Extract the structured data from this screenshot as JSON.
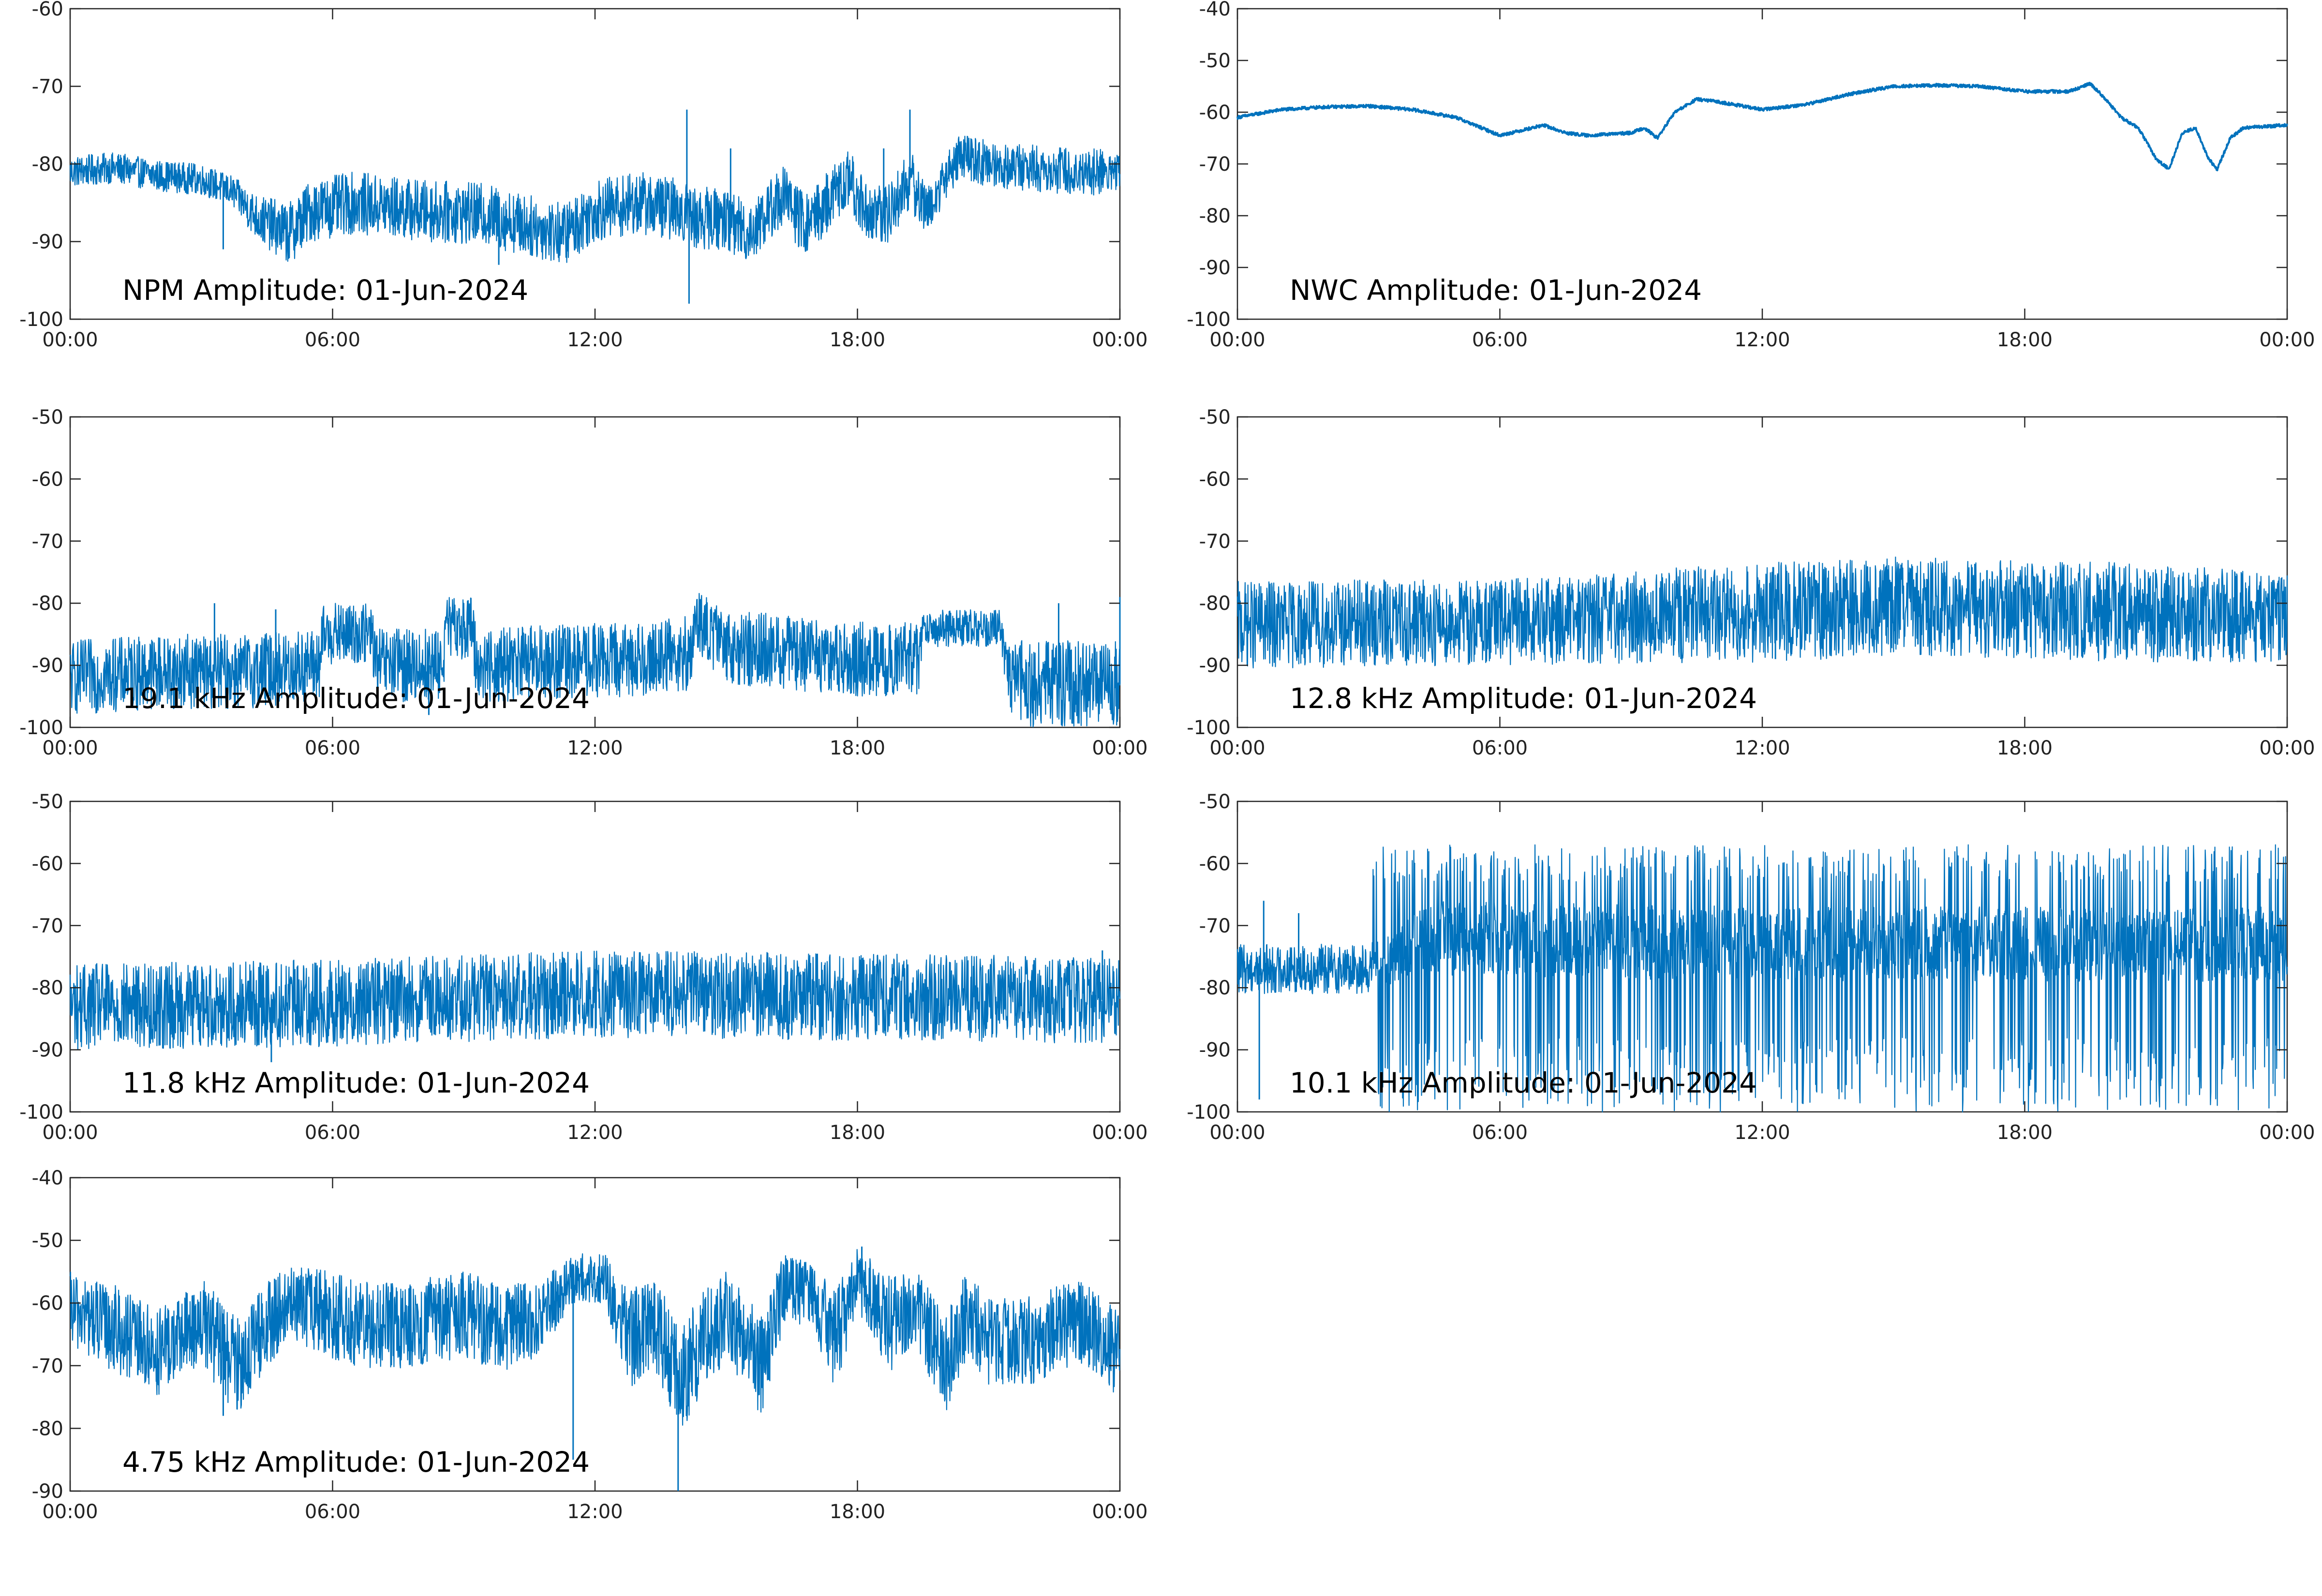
{
  "figure": {
    "line_color": "#0072BD",
    "axes_color": "#262626"
  },
  "chart_data": [
    {
      "type": "line",
      "label": "NPM Amplitude: 01-Jun-2024",
      "xlabel": "",
      "ylabel": "",
      "x_ticks": [
        "00:00",
        "06:00",
        "12:00",
        "18:00",
        "00:00"
      ],
      "xlim_hours": [
        0,
        24
      ],
      "ylim": [
        -100,
        -60
      ],
      "y_ticks": [
        -60,
        -70,
        -80,
        -90,
        -100
      ],
      "grid": false,
      "style": "noisy",
      "series": [
        {
          "x_hours": [
            0,
            1,
            2,
            3,
            3.7,
            4.3,
            5,
            5.5,
            6.5,
            8,
            9.5,
            10.5,
            11.3,
            12,
            13,
            14,
            14.3,
            15,
            15.5,
            16.3,
            16.8,
            17.3,
            17.8,
            18.2,
            18.6,
            19.2,
            19.6,
            20.3,
            21,
            22,
            23,
            24
          ],
          "center": [
            -81,
            -80.5,
            -81.5,
            -82,
            -83.5,
            -87,
            -89,
            -86,
            -85,
            -86,
            -86.5,
            -88,
            -89,
            -86,
            -85,
            -86,
            -87,
            -87,
            -89,
            -84,
            -88,
            -85,
            -82,
            -86,
            -87,
            -82,
            -86,
            -79,
            -80,
            -80.5,
            -81,
            -81
          ],
          "spread": [
            2,
            2,
            2,
            2,
            2,
            3,
            4,
            4,
            4,
            4,
            4,
            4,
            4,
            4,
            4,
            4,
            4,
            4,
            4,
            4,
            4,
            4,
            4,
            4,
            4,
            4,
            3,
            3,
            3,
            3,
            3,
            3
          ],
          "spikes": [
            [
              3.5,
              -91
            ],
            [
              9.8,
              -93
            ],
            [
              14.1,
              -73
            ],
            [
              14.15,
              -98
            ],
            [
              15.1,
              -78
            ],
            [
              19.2,
              -73
            ],
            [
              18.6,
              -78
            ]
          ]
        }
      ]
    },
    {
      "type": "line",
      "label": "NWC Amplitude: 01-Jun-2024",
      "xlabel": "",
      "ylabel": "",
      "x_ticks": [
        "00:00",
        "06:00",
        "12:00",
        "18:00",
        "00:00"
      ],
      "xlim_hours": [
        0,
        24
      ],
      "ylim": [
        -100,
        -40
      ],
      "y_ticks": [
        -40,
        -50,
        -60,
        -70,
        -80,
        -90,
        -100
      ],
      "grid": false,
      "style": "smooth",
      "series": [
        {
          "x_hours": [
            0,
            1,
            2,
            3,
            4,
            5,
            6,
            6.5,
            7,
            7.5,
            8,
            9,
            9.3,
            9.6,
            10,
            10.5,
            11,
            12,
            13,
            14,
            15,
            16,
            17,
            18,
            19,
            19.5,
            19.8,
            20.2,
            20.6,
            21,
            21.3,
            21.6,
            21.9,
            22.2,
            22.4,
            22.7,
            23,
            24
          ],
          "center": [
            -61,
            -59.5,
            -59,
            -58.8,
            -59.5,
            -61,
            -64.5,
            -63.5,
            -62.5,
            -64,
            -64.5,
            -64,
            -63,
            -65,
            -60,
            -57.5,
            -58,
            -59.5,
            -58.5,
            -56.5,
            -55,
            -54.8,
            -55,
            -56,
            -56,
            -54.5,
            -57,
            -61,
            -63,
            -69,
            -71,
            -64,
            -63,
            -69,
            -71,
            -65,
            -63,
            -62.5
          ],
          "spread": [
            0.6
          ],
          "spikes": []
        }
      ]
    },
    {
      "type": "line",
      "label": "19.1 kHz Amplitude: 01-Jun-2024",
      "xlabel": "",
      "ylabel": "",
      "x_ticks": [
        "00:00",
        "06:00",
        "12:00",
        "18:00",
        "00:00"
      ],
      "xlim_hours": [
        0,
        24
      ],
      "ylim": [
        -100,
        -50
      ],
      "y_ticks": [
        -50,
        -60,
        -70,
        -80,
        -90,
        -100
      ],
      "grid": false,
      "style": "noisy",
      "series": [
        {
          "x_hours": [
            0,
            2,
            4,
            5.7,
            5.8,
            6.9,
            7,
            8.5,
            8.6,
            9.2,
            9.3,
            11,
            13,
            14.2,
            14.3,
            15,
            18,
            19.4,
            19.5,
            21.3,
            21.4,
            24
          ],
          "center": [
            -92,
            -91,
            -91,
            -90,
            -85,
            -85,
            -90,
            -90,
            -84,
            -84,
            -90,
            -89.5,
            -89,
            -88,
            -83,
            -87,
            -89,
            -89,
            -84,
            -84,
            -93,
            -93
          ],
          "spread": [
            6,
            6,
            6,
            6,
            5,
            5,
            6,
            6,
            5,
            5,
            6,
            6,
            6,
            6,
            5,
            6,
            6,
            6,
            3,
            3,
            7,
            7
          ],
          "spikes": [
            [
              3.3,
              -80
            ],
            [
              4.7,
              -81
            ],
            [
              8.2,
              -98
            ],
            [
              22.6,
              -80
            ],
            [
              24,
              -79
            ],
            [
              3.6,
              -97
            ]
          ]
        }
      ]
    },
    {
      "type": "line",
      "label": "12.8 kHz Amplitude: 01-Jun-2024",
      "xlabel": "",
      "ylabel": "",
      "x_ticks": [
        "00:00",
        "06:00",
        "12:00",
        "18:00",
        "00:00"
      ],
      "xlim_hours": [
        0,
        24
      ],
      "ylim": [
        -100,
        -50
      ],
      "y_ticks": [
        -50,
        -60,
        -70,
        -80,
        -90,
        -100
      ],
      "grid": false,
      "style": "noisy",
      "series": [
        {
          "x_hours": [
            0,
            6,
            12,
            15,
            18,
            21,
            24
          ],
          "center": [
            -83.5,
            -83,
            -81.5,
            -80.5,
            -81,
            -81.5,
            -82.5
          ],
          "spread": [
            7,
            7,
            8,
            8,
            8,
            8,
            7
          ],
          "spikes": [
            [
              12.3,
              -89
            ],
            [
              9.5,
              -78
            ]
          ]
        }
      ]
    },
    {
      "type": "line",
      "label": "11.8 kHz Amplitude: 01-Jun-2024",
      "xlabel": "",
      "ylabel": "",
      "x_ticks": [
        "00:00",
        "06:00",
        "12:00",
        "18:00",
        "00:00"
      ],
      "xlim_hours": [
        0,
        24
      ],
      "ylim": [
        -100,
        -50
      ],
      "y_ticks": [
        -50,
        -60,
        -70,
        -80,
        -90,
        -100
      ],
      "grid": false,
      "style": "noisy",
      "series": [
        {
          "x_hours": [
            0,
            6,
            12,
            18,
            24
          ],
          "center": [
            -83,
            -82.5,
            -81,
            -81.5,
            -82
          ],
          "spread": [
            7,
            7,
            7,
            7,
            7
          ],
          "spikes": [
            [
              4.6,
              -92
            ],
            [
              14.3,
              -75
            ],
            [
              23.6,
              -74
            ]
          ]
        }
      ]
    },
    {
      "type": "line",
      "label": "10.1 kHz Amplitude: 01-Jun-2024",
      "xlabel": "",
      "ylabel": "",
      "x_ticks": [
        "00:00",
        "06:00",
        "12:00",
        "18:00",
        "00:00"
      ],
      "xlim_hours": [
        0,
        24
      ],
      "ylim": [
        -100,
        -50
      ],
      "y_ticks": [
        -50,
        -60,
        -70,
        -80,
        -90,
        -100
      ],
      "grid": false,
      "style": "bursty",
      "series": [
        {
          "x_hours": [
            0,
            3,
            4.5,
            12,
            18,
            24
          ],
          "center": [
            -77,
            -77,
            -72,
            -73,
            -73,
            -73
          ],
          "spread": [
            4,
            4,
            6,
            6,
            6,
            6
          ],
          "burst_start": 3.1,
          "burst_low": -100,
          "burst_high": -63,
          "spikes": [
            [
              0.5,
              -98
            ],
            [
              0.6,
              -66
            ],
            [
              1.4,
              -68
            ]
          ]
        }
      ]
    },
    {
      "type": "line",
      "label": "4.75 kHz Amplitude: 01-Jun-2024",
      "xlabel": "",
      "ylabel": "",
      "x_ticks": [
        "00:00",
        "06:00",
        "12:00",
        "18:00",
        "00:00"
      ],
      "xlim_hours": [
        0,
        24
      ],
      "ylim": [
        -90,
        -40
      ],
      "y_ticks": [
        -40,
        -50,
        -60,
        -70,
        -80,
        -90
      ],
      "grid": false,
      "style": "noisy",
      "series": [
        {
          "x_hours": [
            0,
            1,
            2,
            3,
            3.8,
            4.6,
            5,
            6,
            7,
            8,
            9,
            10,
            10.8,
            11.5,
            12.2,
            12.8,
            13.3,
            14,
            14.5,
            15,
            15.8,
            16.3,
            16.9,
            17.5,
            18,
            18.8,
            19.3,
            20,
            20.5,
            21,
            22,
            23,
            24
          ],
          "center": [
            -61,
            -64,
            -68,
            -63,
            -70,
            -63,
            -60,
            -62,
            -64,
            -63,
            -62,
            -64,
            -62,
            -56,
            -56,
            -66,
            -63,
            -72,
            -66,
            -62,
            -70,
            -58,
            -58,
            -66,
            -56,
            -64,
            -60,
            -70,
            -62,
            -66,
            -66,
            -63,
            -68
          ],
          "spread": [
            6,
            7,
            7,
            7,
            8,
            7,
            6,
            7,
            7,
            7,
            7,
            7,
            6,
            4,
            4,
            8,
            7,
            9,
            8,
            7,
            8,
            6,
            5,
            8,
            5,
            8,
            6,
            8,
            7,
            7,
            7,
            7,
            7
          ],
          "spikes": [
            [
              13.9,
              -90
            ],
            [
              3.5,
              -78
            ],
            [
              11.5,
              -85
            ],
            [
              18.1,
              -51
            ]
          ]
        }
      ]
    }
  ]
}
